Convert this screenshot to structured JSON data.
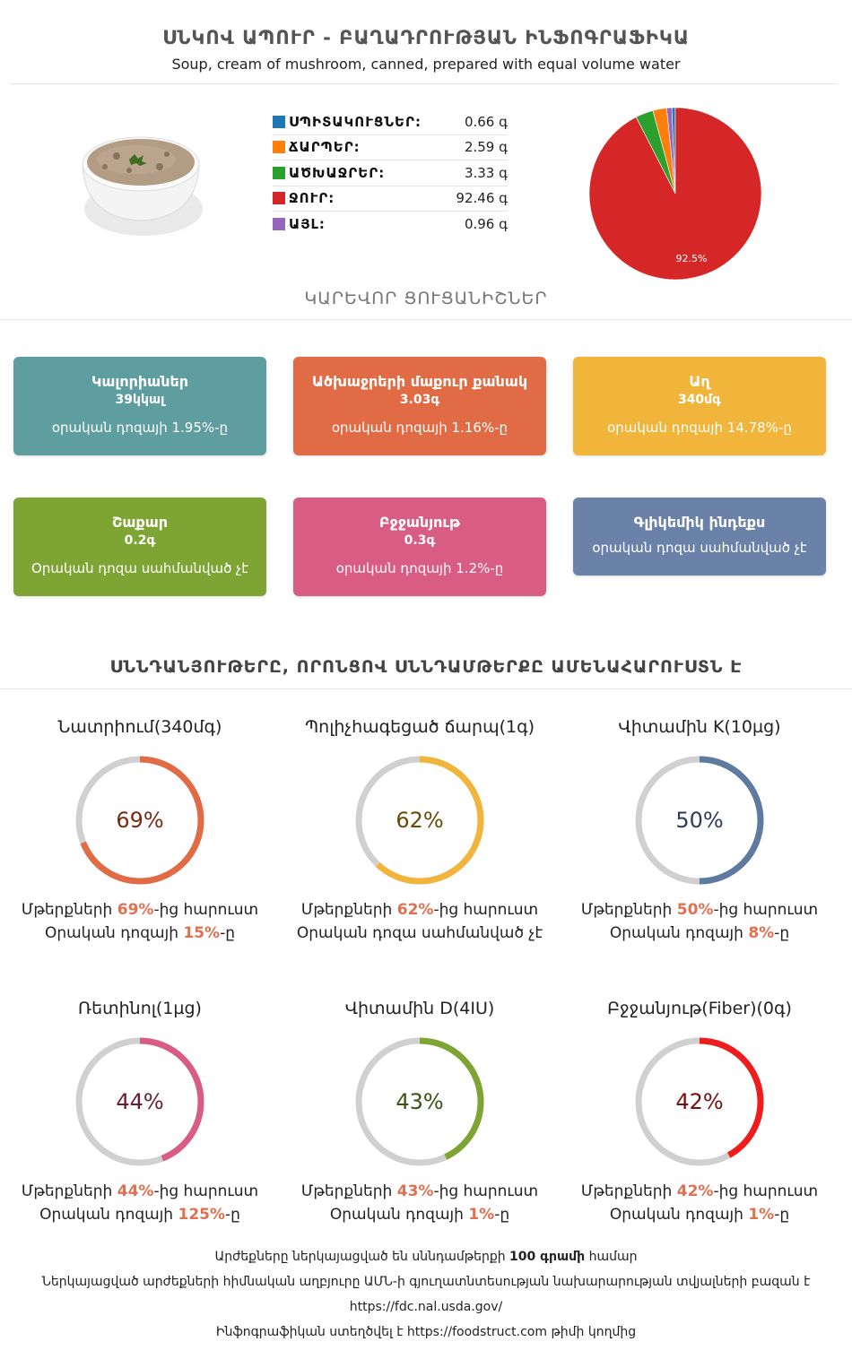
{
  "header": {
    "title": "ՍՆԿՈՎ ԱՊՈՒՐ - ԲԱՂԱԴՐՈՒԹՅԱՆ ԻՆՖՈԳՐԱՖԻԿԱ",
    "subtitle": "Soup, cream of mushroom, canned, prepared with equal volume water"
  },
  "macros": [
    {
      "name": "ՍՊԻՏԱԿՈՒՑՆԵՐ:",
      "value": "0.66 գ",
      "amount": 0.66,
      "color": "#1f77b4"
    },
    {
      "name": "ՃԱՐՊԵՐ:",
      "value": "2.59 գ",
      "amount": 2.59,
      "color": "#ff7f0e"
    },
    {
      "name": "ԱԾԽԱՋՐԵՐ:",
      "value": "3.33 գ",
      "amount": 3.33,
      "color": "#2ca02c"
    },
    {
      "name": "ՋՈՒՐ:",
      "value": "92.46 գ",
      "amount": 92.46,
      "color": "#d62728"
    },
    {
      "name": "ԱՅԼ:",
      "value": "0.96 գ",
      "amount": 0.96,
      "color": "#9467bd"
    }
  ],
  "chart_data": {
    "type": "pie",
    "categories": [
      "ՍՊԻՏԱԿՈՒՑՆԵՐ",
      "ՃԱՐՊԵՐ",
      "ԱԾԽԱՋՐԵՐ",
      "ՋՈՒՐ",
      "ԱՅԼ"
    ],
    "values": [
      0.66,
      2.59,
      3.33,
      92.46,
      0.96
    ],
    "colors": [
      "#1f77b4",
      "#ff7f0e",
      "#2ca02c",
      "#d62728",
      "#9467bd"
    ],
    "slice_label": "92.5%"
  },
  "key_section": {
    "heading": "ԿԱՐԵՎՈՐ ՑՈՒՑԱՆԻՇՆԵՐ"
  },
  "cards": [
    {
      "title": "Կալորիաներ",
      "value": "39կկալ",
      "note": "օրական դոզայի 1.95%-ը",
      "color": "#5f9ea0"
    },
    {
      "title": "Ածխաջրերի մաքուր քանակ",
      "value": "3.03գ",
      "note": "օրական դոզայի 1.16%-ը",
      "color": "#e06b45"
    },
    {
      "title": "Աղ",
      "value": "340մգ",
      "note": "օրական դոզայի 14.78%-ը",
      "color": "#f0b53a"
    },
    {
      "title": "Շաքար",
      "value": "0.2գ",
      "note": "Օրական դոզա սահմանված չէ",
      "color": "#7ea534"
    },
    {
      "title": "Բջջանյութ",
      "value": "0.3գ",
      "note": "օրական դոզայի 1.2%-ը",
      "color": "#d95c84"
    },
    {
      "title": "Գլիկեմիկ ինդեքս",
      "value": "",
      "note": "օրական դոզա սահմանված չէ",
      "color": "#6a81a8"
    }
  ],
  "nutrient_section": {
    "heading": "ՍՆՆԴԱՆՅՈՒԹԵՐԸ, ՈՐՈՆՑՈՎ ՍՆՆԴԱՄԹԵՐՔԸ ԱՄԵՆԱՀԱՐՈՒՍՏՆ Է"
  },
  "rings": [
    {
      "name": "Նատրիում(340մգ)",
      "pct": 69,
      "pct_label": "69%",
      "color": "#e06b45",
      "text_color": "#7a2a12",
      "line1_pre": "Մթերքների ",
      "line1_hl": "69%",
      "line1_post": "-ից հարուստ",
      "line2_pre": "Օրական դոզայի ",
      "line2_hl": "15%",
      "line2_post": "-ը"
    },
    {
      "name": "Պոլիչհագեցած ճարպ(1գ)",
      "pct": 62,
      "pct_label": "62%",
      "color": "#f0b53a",
      "text_color": "#6b4a05",
      "line1_pre": "Մթերքների ",
      "line1_hl": "62%",
      "line1_post": "-ից հարուստ",
      "line2_pre": "Օրական դոզա սահմանված չէ",
      "line2_hl": "",
      "line2_post": ""
    },
    {
      "name": "Վիտամին K(10µg)",
      "pct": 50,
      "pct_label": "50%",
      "color": "#5e7aa0",
      "text_color": "#2a3e5c",
      "line1_pre": "Մթերքների ",
      "line1_hl": "50%",
      "line1_post": "-ից հարուստ",
      "line2_pre": "Օրական դոզայի ",
      "line2_hl": "8%",
      "line2_post": "-ը"
    },
    {
      "name": "Ռետինոլ(1µg)",
      "pct": 44,
      "pct_label": "44%",
      "color": "#d95c84",
      "text_color": "#6b1a36",
      "line1_pre": "Մթերքների ",
      "line1_hl": "44%",
      "line1_post": "-ից հարուստ",
      "line2_pre": "Օրական դոզայի ",
      "line2_hl": "125%",
      "line2_post": "-ը"
    },
    {
      "name": "Վիտամին D(4IU)",
      "pct": 43,
      "pct_label": "43%",
      "color": "#7ea534",
      "text_color": "#3a5212",
      "line1_pre": "Մթերքների ",
      "line1_hl": "43%",
      "line1_post": "-ից հարուստ",
      "line2_pre": "Օրական դոզայի ",
      "line2_hl": "1%",
      "line2_post": "-ը"
    },
    {
      "name": "Բջջանյութ(Fiber)(0գ)",
      "pct": 42,
      "pct_label": "42%",
      "color": "#ee1c1c",
      "text_color": "#7a0f0f",
      "line1_pre": "Մթերքների ",
      "line1_hl": "42%",
      "line1_post": "-ից հարուստ",
      "line2_pre": "Օրական դոզայի ",
      "line2_hl": "1%",
      "line2_post": "-ը"
    }
  ],
  "footer": {
    "line1_pre": "Արժեքները ներկայացված են սննդամթերքի ",
    "line1_bold": "100 գրամի",
    "line1_post": " համար",
    "line2": "Ներկայացված արժեքների հիմնական աղբյուրը ԱՄՆ-ի գյուղատնտեսության նախարարության տվյալների բազան է",
    "line3": "https://fdc.nal.usda.gov/",
    "line4": "Ինֆոգրաֆիկան ստեղծվել է https://foodstruct.com թիմի կողմից"
  }
}
